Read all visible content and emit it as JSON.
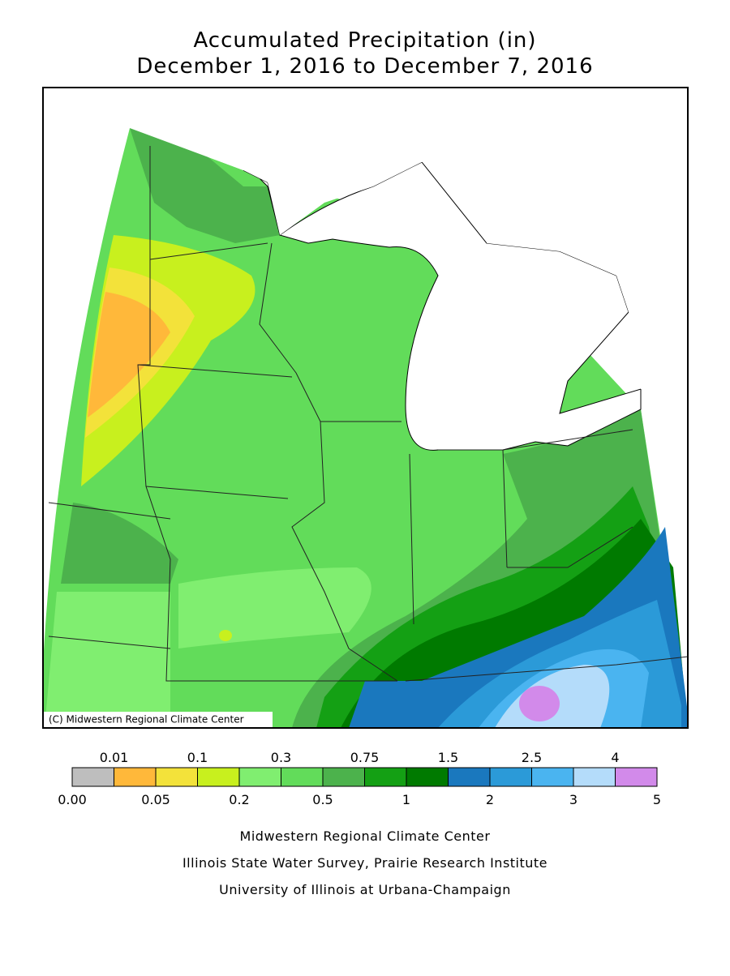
{
  "header": {
    "title": "Accumulated Precipitation (in)",
    "subtitle": "December 1, 2016 to December 7, 2016"
  },
  "map": {
    "copyright": "(C) Midwestern Regional Climate Center"
  },
  "legend": {
    "colors": [
      "#bebebe",
      "#ffb83a",
      "#f3e23a",
      "#c8f01e",
      "#80ee70",
      "#62dc5a",
      "#4cb24c",
      "#14a014",
      "#007a00",
      "#1a78be",
      "#2b9ad8",
      "#4ab4f0",
      "#b4dcfa",
      "#d28aea"
    ],
    "top_labels": [
      "0.01",
      "0.1",
      "0.3",
      "0.75",
      "1.5",
      "2.5",
      "4"
    ],
    "bottom_labels": [
      "0.00",
      "0.05",
      "0.2",
      "0.5",
      "1",
      "2",
      "3",
      "5"
    ]
  },
  "footer": {
    "lines": [
      "Midwestern Regional Climate Center",
      "Illinois State Water Survey, Prairie Research Institute",
      "University of Illinois at Urbana-Champaign"
    ]
  }
}
